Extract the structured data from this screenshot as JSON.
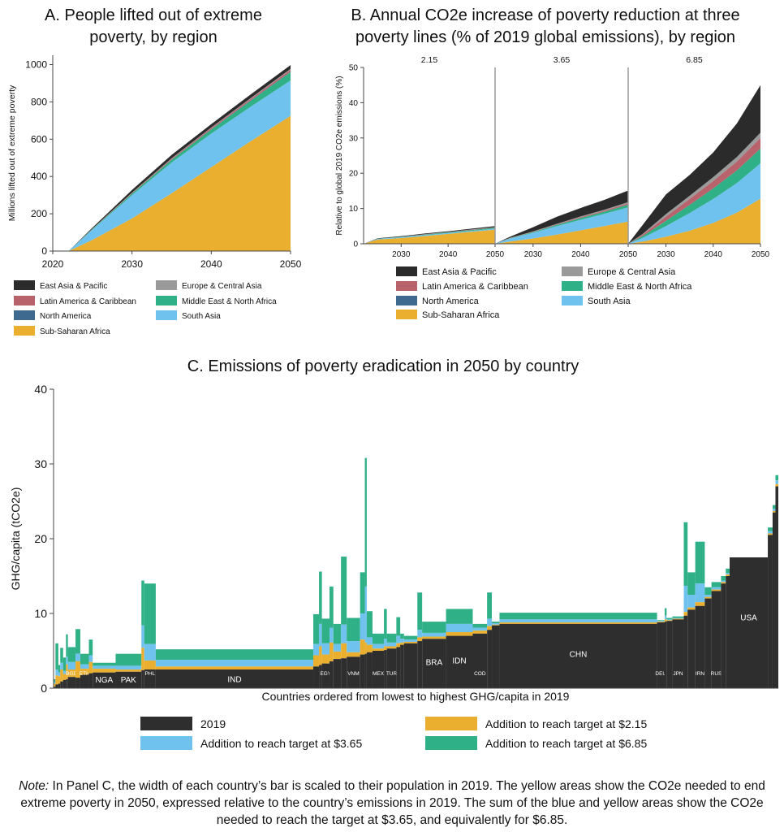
{
  "colors": {
    "east_asia_pacific": "#2b2b2b",
    "latin_america": "#b8626b",
    "north_america": "#3f6a8f",
    "sub_saharan_africa": "#eaaf2e",
    "europe_central_asia": "#9a9a9a",
    "middle_east_north_africa": "#2fb086",
    "south_asia": "#70c2ee",
    "y2019": "#2e2e2e"
  },
  "chart_data": [
    {
      "type": "area",
      "title": [
        "A. People lifted out of extreme",
        "poverty, by region"
      ],
      "ylabel": "Millions lifted out of extreme poverty",
      "x": [
        2022,
        2025,
        2030,
        2035,
        2040,
        2045,
        2050
      ],
      "xlim": [
        2020,
        2050
      ],
      "ylim": [
        0,
        1050
      ],
      "xticks": [
        "2020",
        "2030",
        "2040",
        "2050"
      ],
      "yticks": [
        "0",
        "200",
        "400",
        "600",
        "800",
        "1000"
      ],
      "series": [
        {
          "name": "Sub-Saharan Africa",
          "key": "sub_saharan_africa",
          "values": [
            0,
            60,
            175,
            310,
            450,
            590,
            725
          ]
        },
        {
          "name": "South Asia",
          "key": "south_asia",
          "values": [
            0,
            55,
            125,
            165,
            180,
            185,
            190
          ]
        },
        {
          "name": "Middle East & North Africa",
          "key": "middle_east_north_africa",
          "values": [
            0,
            3,
            8,
            14,
            22,
            32,
            45
          ]
        },
        {
          "name": "North America",
          "key": "north_america",
          "values": [
            0,
            0,
            0,
            1,
            1,
            2,
            2
          ]
        },
        {
          "name": "Latin America & Caribbean",
          "key": "latin_america",
          "values": [
            0,
            1,
            3,
            5,
            7,
            8,
            10
          ]
        },
        {
          "name": "Europe & Central Asia",
          "key": "europe_central_asia",
          "values": [
            0,
            1,
            2,
            3,
            3,
            4,
            5
          ]
        },
        {
          "name": "East Asia & Pacific",
          "key": "east_asia_pacific",
          "values": [
            0,
            5,
            15,
            18,
            18,
            20,
            20
          ]
        }
      ],
      "legend": [
        "East Asia & Pacific",
        "Europe & Central Asia",
        "Latin America & Caribbean",
        "Middle East & North Africa",
        "North America",
        "South Asia",
        "Sub-Saharan Africa"
      ]
    },
    {
      "type": "area",
      "title": [
        "B. Annual CO2e increase of poverty reduction at three",
        "poverty lines (% of 2019 global emissions), by region"
      ],
      "ylabel": "Relative to global 2019 CO2e emissions (%)",
      "ylim": [
        0,
        50
      ],
      "yticks": [
        "0",
        "10",
        "20",
        "30",
        "40",
        "50"
      ],
      "xticks": [
        "2030",
        "2040",
        "2050"
      ],
      "xlim": [
        2022,
        2050
      ],
      "x": [
        2022,
        2025,
        2030,
        2035,
        2040,
        2045,
        2050
      ],
      "panels": [
        {
          "label": "2.15",
          "series": [
            {
              "key": "sub_saharan_africa",
              "values": [
                0,
                1.2,
                1.6,
                2.2,
                2.8,
                3.4,
                4.0
              ]
            },
            {
              "key": "south_asia",
              "values": [
                0,
                0.2,
                0.25,
                0.25,
                0.25,
                0.25,
                0.25
              ]
            },
            {
              "key": "middle_east_north_africa",
              "values": [
                0,
                0.05,
                0.1,
                0.15,
                0.2,
                0.25,
                0.3
              ]
            },
            {
              "key": "north_america",
              "values": [
                0,
                0,
                0,
                0,
                0,
                0,
                0
              ]
            },
            {
              "key": "latin_america",
              "values": [
                0,
                0,
                0.05,
                0.05,
                0.05,
                0.1,
                0.1
              ]
            },
            {
              "key": "europe_central_asia",
              "values": [
                0,
                0,
                0,
                0.05,
                0.05,
                0.05,
                0.05
              ]
            },
            {
              "key": "east_asia_pacific",
              "values": [
                0,
                0.1,
                0.15,
                0.2,
                0.2,
                0.25,
                0.3
              ]
            }
          ]
        },
        {
          "label": "3.65",
          "series": [
            {
              "key": "sub_saharan_africa",
              "values": [
                0,
                0.6,
                1.5,
                2.6,
                3.8,
                5.0,
                6.3
              ]
            },
            {
              "key": "south_asia",
              "values": [
                0,
                0.8,
                1.6,
                2.4,
                3.0,
                3.5,
                4.0
              ]
            },
            {
              "key": "middle_east_north_africa",
              "values": [
                0,
                0.1,
                0.2,
                0.35,
                0.5,
                0.6,
                0.8
              ]
            },
            {
              "key": "north_america",
              "values": [
                0,
                0,
                0,
                0,
                0,
                0,
                0
              ]
            },
            {
              "key": "latin_america",
              "values": [
                0,
                0.05,
                0.1,
                0.15,
                0.25,
                0.3,
                0.4
              ]
            },
            {
              "key": "europe_central_asia",
              "values": [
                0,
                0.05,
                0.1,
                0.15,
                0.2,
                0.25,
                0.3
              ]
            },
            {
              "key": "east_asia_pacific",
              "values": [
                0,
                0.3,
                1.2,
                2.0,
                2.4,
                2.8,
                3.3
              ]
            }
          ]
        },
        {
          "label": "6.85",
          "series": [
            {
              "key": "sub_saharan_africa",
              "values": [
                0,
                0.6,
                2.0,
                3.7,
                5.9,
                8.8,
                12.8
              ]
            },
            {
              "key": "south_asia",
              "values": [
                0,
                1.0,
                3.0,
                5.0,
                6.8,
                8.4,
                10.0
              ]
            },
            {
              "key": "middle_east_north_africa",
              "values": [
                0,
                0.5,
                1.5,
                2.3,
                3.0,
                3.6,
                4.2
              ]
            },
            {
              "key": "north_america",
              "values": [
                0,
                0,
                0,
                0,
                0,
                0,
                0
              ]
            },
            {
              "key": "latin_america",
              "values": [
                0,
                0.4,
                1.2,
                1.7,
                2.1,
                2.5,
                3.0
              ]
            },
            {
              "key": "europe_central_asia",
              "values": [
                0,
                0.2,
                0.7,
                0.9,
                1.1,
                1.3,
                1.5
              ]
            },
            {
              "key": "east_asia_pacific",
              "values": [
                0,
                2.5,
                5.6,
                5.9,
                7.0,
                9.5,
                13.5
              ]
            }
          ]
        }
      ],
      "legend": [
        "East Asia & Pacific",
        "Europe & Central Asia",
        "Latin America & Caribbean",
        "Middle East & North Africa",
        "North America",
        "South Asia",
        "Sub-Saharan Africa"
      ]
    },
    {
      "type": "bar",
      "title": "C. Emissions of poverty eradication in 2050 by country",
      "xlabel": "Countries ordered from lowest to highest GHG/capita in 2019",
      "ylabel": "GHG/capita (tCO2e)",
      "ylim": [
        0,
        40
      ],
      "yticks": [
        "0",
        "10",
        "20",
        "30",
        "40"
      ],
      "note": "bar width proportional to population; 'w' = relative width",
      "countries": [
        {
          "w": 2,
          "v19": 0.2,
          "a215": 0.4,
          "a365": 0.6,
          "a685": 1.0
        },
        {
          "w": 3,
          "v19": 0.5,
          "a215": 1.2,
          "a365": 2.0,
          "a685": 5.5
        },
        {
          "w": 2,
          "v19": 0.6,
          "a215": 1.0,
          "a365": 1.5,
          "a685": 2.5
        },
        {
          "w": 3,
          "v19": 0.9,
          "a215": 1.6,
          "a365": 2.5,
          "a685": 4.5
        },
        {
          "w": 3,
          "v19": 1.1,
          "a215": 0.8,
          "a365": 1.2,
          "a685": 3.0
        },
        {
          "w": 2,
          "v19": 1.2,
          "a215": 2.0,
          "a365": 3.0,
          "a685": 6.0
        },
        {
          "w": 8,
          "v19": 1.5,
          "a215": 1.0,
          "a365": 2.0,
          "a685": 4.0,
          "label": "BGD"
        },
        {
          "w": 5,
          "v19": 1.4,
          "a215": 2.2,
          "a365": 3.2,
          "a685": 6.5
        },
        {
          "w": 9,
          "v19": 1.8,
          "a215": 0.8,
          "a365": 1.4,
          "a685": 2.8,
          "label": "ETH"
        },
        {
          "w": 4,
          "v19": 2.0,
          "a215": 1.5,
          "a365": 2.4,
          "a685": 4.5
        },
        {
          "w": 24,
          "v19": 2.1,
          "a215": 0.5,
          "a365": 0.9,
          "a685": 1.3,
          "label": "NGA"
        },
        {
          "w": 27,
          "v19": 2.2,
          "a215": 0.3,
          "a365": 0.8,
          "a685": 2.4,
          "label": "PAK"
        },
        {
          "w": 3,
          "v19": 2.4,
          "a215": 3.0,
          "a365": 6.0,
          "a685": 12.0
        },
        {
          "w": 12,
          "v19": 2.5,
          "a215": 1.2,
          "a365": 3.4,
          "a685": 11.5,
          "label": "PHL"
        },
        {
          "w": 165,
          "v19": 2.5,
          "a215": 0.4,
          "a365": 1.3,
          "a685": 2.7,
          "label": "IND"
        },
        {
          "w": 6,
          "v19": 2.9,
          "a215": 1.5,
          "a365": 3.0,
          "a685": 7.0
        },
        {
          "w": 3,
          "v19": 3.1,
          "a215": 2.5,
          "a365": 5.5,
          "a685": 12.5
        },
        {
          "w": 8,
          "v19": 3.3,
          "a215": 1.2,
          "a365": 2.7,
          "a685": 6.0,
          "label": "EGY"
        },
        {
          "w": 4,
          "v19": 3.6,
          "a215": 2.5,
          "a365": 4.5,
          "a685": 10.0
        },
        {
          "w": 8,
          "v19": 3.9,
          "a215": 1.0,
          "a365": 2.0,
          "a685": 4.7
        },
        {
          "w": 6,
          "v19": 4.0,
          "a215": 2.0,
          "a365": 4.5,
          "a685": 13.6
        },
        {
          "w": 14,
          "v19": 4.2,
          "a215": 0.6,
          "a365": 2.1,
          "a685": 5.2,
          "label": "VNM"
        },
        {
          "w": 5,
          "v19": 4.5,
          "a215": 2.0,
          "a365": 5.5,
          "a685": 11.0
        },
        {
          "w": 2,
          "v19": 4.6,
          "a215": 1.5,
          "a365": 9.0,
          "a685": 26.2
        },
        {
          "w": 6,
          "v19": 4.8,
          "a215": 1.0,
          "a365": 2.0,
          "a685": 5.5
        },
        {
          "w": 12,
          "v19": 5.0,
          "a215": 0.3,
          "a365": 0.9,
          "a685": 2.3,
          "label": "MEX"
        },
        {
          "w": 3,
          "v19": 5.1,
          "a215": 0.5,
          "a365": 1.5,
          "a685": 5.5
        },
        {
          "w": 10,
          "v19": 5.3,
          "a215": 0.3,
          "a365": 0.8,
          "a685": 2.0,
          "label": "TUR"
        },
        {
          "w": 4,
          "v19": 5.5,
          "a215": 0.5,
          "a365": 1.5,
          "a685": 4.0
        },
        {
          "w": 4,
          "v19": 5.8,
          "a215": 0.3,
          "a365": 0.8,
          "a685": 1.5
        },
        {
          "w": 14,
          "v19": 6.0,
          "a215": 0.2,
          "a365": 0.5,
          "a685": 1.0
        },
        {
          "w": 5,
          "v19": 6.3,
          "a215": 0.5,
          "a365": 1.5,
          "a685": 6.5
        },
        {
          "w": 25,
          "v19": 6.6,
          "a215": 0.3,
          "a365": 0.8,
          "a685": 2.3,
          "label": "BRA"
        },
        {
          "w": 28,
          "v19": 7.0,
          "a215": 0.5,
          "a365": 1.6,
          "a685": 3.6,
          "label": "IDN"
        },
        {
          "w": 15,
          "v19": 7.3,
          "a215": 0.4,
          "a365": 0.8,
          "a685": 1.3,
          "label": "COD"
        },
        {
          "w": 5,
          "v19": 7.8,
          "a215": 0.5,
          "a365": 1.5,
          "a685": 5.0
        },
        {
          "w": 8,
          "v19": 8.4,
          "a215": 0.1,
          "a365": 0.3,
          "a685": 0.5
        },
        {
          "w": 165,
          "v19": 8.6,
          "a215": 0.2,
          "a365": 0.6,
          "a685": 1.5,
          "label": "CHN"
        },
        {
          "w": 8,
          "v19": 8.8,
          "a215": 0.1,
          "a365": 0.2,
          "a685": 0.3,
          "label": "DEU"
        },
        {
          "w": 2,
          "v19": 8.9,
          "a215": 0.3,
          "a365": 0.8,
          "a685": 1.8
        },
        {
          "w": 6,
          "v19": 9.0,
          "a215": 0.1,
          "a365": 0.2,
          "a685": 0.4
        },
        {
          "w": 12,
          "v19": 9.2,
          "a215": 0.1,
          "a365": 0.2,
          "a685": 0.4,
          "label": "JPN"
        },
        {
          "w": 4,
          "v19": 9.7,
          "a215": 0.5,
          "a365": 4.0,
          "a685": 12.5
        },
        {
          "w": 8,
          "v19": 10.5,
          "a215": 0.3,
          "a365": 2.0,
          "a685": 5.0
        },
        {
          "w": 10,
          "v19": 11.0,
          "a215": 0.5,
          "a365": 3.0,
          "a685": 8.6,
          "label": "IRN"
        },
        {
          "w": 7,
          "v19": 12.0,
          "a215": 0.2,
          "a365": 0.5,
          "a685": 1.5
        },
        {
          "w": 10,
          "v19": 13.0,
          "a215": 0.2,
          "a365": 0.5,
          "a685": 1.2,
          "label": "RUS"
        },
        {
          "w": 5,
          "v19": 14.0,
          "a215": 0.2,
          "a365": 0.4,
          "a685": 1.0
        },
        {
          "w": 4,
          "v19": 15.0,
          "a215": 0.2,
          "a365": 0.4,
          "a685": 1.0
        },
        {
          "w": 40,
          "v19": 17.5,
          "a215": 0,
          "a365": 0,
          "a685": 0,
          "label": "USA"
        },
        {
          "w": 5,
          "v19": 20.5,
          "a215": 0.2,
          "a365": 0.5,
          "a685": 1.0
        },
        {
          "w": 3,
          "v19": 23.5,
          "a215": 0.2,
          "a365": 0.5,
          "a685": 1.0
        },
        {
          "w": 3,
          "v19": 27.0,
          "a215": 0.3,
          "a365": 0.8,
          "a685": 1.5
        }
      ],
      "legend": [
        "2019",
        "Addition to reach target at $2.15",
        "Addition to reach target at $3.65",
        "Addition to reach target at $6.85"
      ]
    }
  ],
  "note": {
    "lead": "Note:",
    "text": " In Panel C, the width of each country’s bar is scaled to their population in 2019. The yellow areas show the CO2e needed to end extreme poverty in 2050, expressed relative to the country’s emissions in 2019. The sum of the blue and yellow areas show the CO2e needed to reach the target at $3.65, and equivalently for $6.85."
  }
}
